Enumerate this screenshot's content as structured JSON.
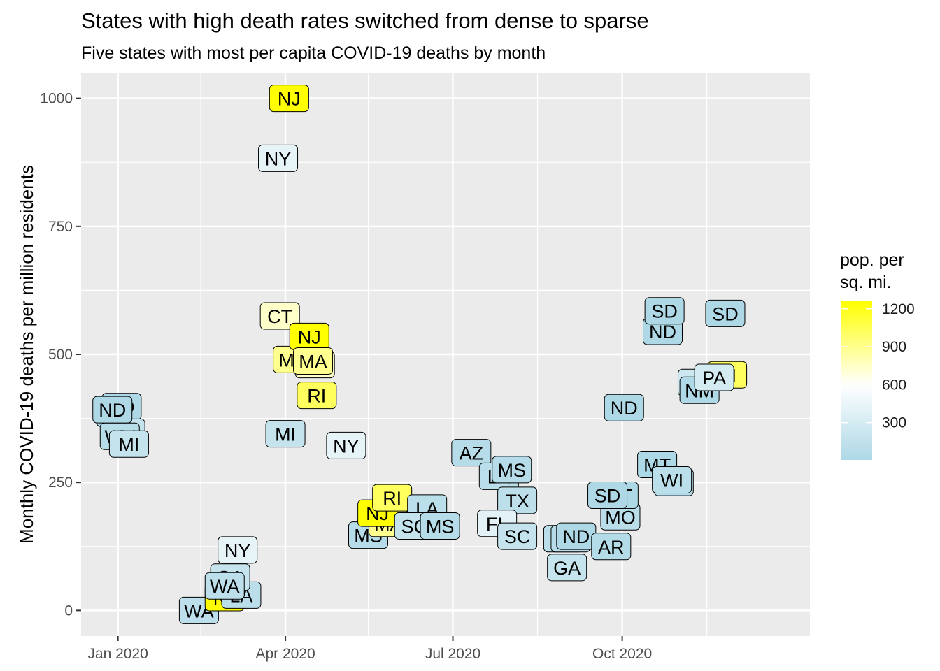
{
  "chart_data": {
    "type": "scatter",
    "title": "States with high death rates switched from dense to sparse",
    "subtitle": "Five states with most per capita COVID-19 deaths by month",
    "xlabel": "",
    "ylabel": "Monthly COVID-19 deaths per million residents",
    "xlim": [
      "2019-12-12",
      "2021-01-11"
    ],
    "ylim": [
      -50,
      1050
    ],
    "x_ticks": [
      "Jan 2020",
      "Apr 2020",
      "Jul 2020",
      "Oct 2020"
    ],
    "x_tick_dates": [
      "2020-01-01",
      "2020-04-01",
      "2020-07-01",
      "2020-10-01"
    ],
    "y_ticks": [
      0,
      250,
      500,
      750,
      1000
    ],
    "grid": true,
    "legend": {
      "title": "pop. per\nsq. mi.",
      "placement": "right",
      "ticks": [
        300,
        600,
        900,
        1200
      ],
      "range": [
        5,
        1265
      ],
      "colors": {
        "low": "#ADD8E6",
        "mid": "#FFFFFF",
        "high": "#FFFF00",
        "midpoint": 600
      }
    },
    "points": [
      {
        "date": "2019-12-31",
        "deaths": 385,
        "state": "ND",
        "density": 11
      },
      {
        "date": "2020-01-03",
        "deaths": 398,
        "state": "SD",
        "density": 12
      },
      {
        "date": "2020-01-05",
        "deaths": 348,
        "state": "MI",
        "density": 178
      },
      {
        "date": "2020-01-02",
        "deaths": 340,
        "state": "WV",
        "density": 75
      },
      {
        "date": "2020-01-07",
        "deaths": 325,
        "state": "MI",
        "density": 178
      },
      {
        "date": "2019-12-29",
        "deaths": 392,
        "state": "ND",
        "density": 11
      },
      {
        "date": "2020-02-14",
        "deaths": 0,
        "state": "WA",
        "density": 115
      },
      {
        "date": "2020-02-28",
        "deaths": 25,
        "state": "NJ",
        "density": 1263
      },
      {
        "date": "2020-03-08",
        "deaths": 30,
        "state": "LA",
        "density": 108
      },
      {
        "date": "2020-03-02",
        "deaths": 65,
        "state": "GA",
        "density": 185
      },
      {
        "date": "2020-02-28",
        "deaths": 48,
        "state": "WA",
        "density": 115
      },
      {
        "date": "2020-03-06",
        "deaths": 118,
        "state": "NY",
        "density": 420
      },
      {
        "date": "2020-03-28",
        "deaths": 883,
        "state": "NY",
        "density": 420
      },
      {
        "date": "2020-04-03",
        "deaths": 1000,
        "state": "NJ",
        "density": 1263
      },
      {
        "date": "2020-03-29",
        "deaths": 575,
        "state": "CT",
        "density": 740
      },
      {
        "date": "2020-04-05",
        "deaths": 490,
        "state": "MA",
        "density": 890
      },
      {
        "date": "2020-04-14",
        "deaths": 535,
        "state": "NJ",
        "density": 1263
      },
      {
        "date": "2020-04-17",
        "deaths": 480,
        "state": "CT",
        "density": 740
      },
      {
        "date": "2020-04-16",
        "deaths": 487,
        "state": "MA",
        "density": 890
      },
      {
        "date": "2020-04-18",
        "deaths": 420,
        "state": "RI",
        "density": 1022
      },
      {
        "date": "2020-04-01",
        "deaths": 345,
        "state": "MI",
        "density": 178
      },
      {
        "date": "2020-05-04",
        "deaths": 322,
        "state": "NY",
        "density": 420
      },
      {
        "date": "2020-05-16",
        "deaths": 147,
        "state": "MS",
        "density": 63
      },
      {
        "date": "2020-05-27",
        "deaths": 170,
        "state": "MA",
        "density": 890
      },
      {
        "date": "2020-05-21",
        "deaths": 190,
        "state": "NJ",
        "density": 1263
      },
      {
        "date": "2020-05-29",
        "deaths": 220,
        "state": "RI",
        "density": 1022
      },
      {
        "date": "2020-06-17",
        "deaths": 200,
        "state": "LA",
        "density": 108
      },
      {
        "date": "2020-06-10",
        "deaths": 165,
        "state": "SC",
        "density": 170
      },
      {
        "date": "2020-06-24",
        "deaths": 165,
        "state": "MS",
        "density": 63
      },
      {
        "date": "2020-07-11",
        "deaths": 308,
        "state": "AZ",
        "density": 64
      },
      {
        "date": "2020-07-26",
        "deaths": 262,
        "state": "LA",
        "density": 108
      },
      {
        "date": "2020-08-02",
        "deaths": 275,
        "state": "MS",
        "density": 63
      },
      {
        "date": "2020-08-05",
        "deaths": 215,
        "state": "TX",
        "density": 112
      },
      {
        "date": "2020-07-25",
        "deaths": 170,
        "state": "FL",
        "density": 400
      },
      {
        "date": "2020-08-05",
        "deaths": 145,
        "state": "SC",
        "density": 170
      },
      {
        "date": "2020-08-30",
        "deaths": 140,
        "state": "LA",
        "density": 108
      },
      {
        "date": "2020-09-03",
        "deaths": 140,
        "state": "MS",
        "density": 63
      },
      {
        "date": "2020-09-01",
        "deaths": 84,
        "state": "GA",
        "density": 185
      },
      {
        "date": "2020-09-06",
        "deaths": 145,
        "state": "ND",
        "density": 11
      },
      {
        "date": "2020-09-25",
        "deaths": 125,
        "state": "AR",
        "density": 58
      },
      {
        "date": "2020-09-30",
        "deaths": 183,
        "state": "MO",
        "density": 89
      },
      {
        "date": "2020-09-29",
        "deaths": 225,
        "state": "MT",
        "density": 8
      },
      {
        "date": "2020-09-23",
        "deaths": 225,
        "state": "SD",
        "density": 12
      },
      {
        "date": "2020-10-02",
        "deaths": 396,
        "state": "ND",
        "density": 11
      },
      {
        "date": "2020-10-23",
        "deaths": 545,
        "state": "ND",
        "density": 11
      },
      {
        "date": "2020-10-24",
        "deaths": 585,
        "state": "SD",
        "density": 12
      },
      {
        "date": "2020-10-20",
        "deaths": 285,
        "state": "MT",
        "density": 8
      },
      {
        "date": "2020-10-29",
        "deaths": 250,
        "state": "IA",
        "density": 57
      },
      {
        "date": "2020-10-28",
        "deaths": 255,
        "state": "WI",
        "density": 108
      },
      {
        "date": "2020-11-11",
        "deaths": 445,
        "state": "IL",
        "density": 231
      },
      {
        "date": "2020-11-12",
        "deaths": 430,
        "state": "NM",
        "density": 17
      },
      {
        "date": "2020-11-27",
        "deaths": 460,
        "state": "RI",
        "density": 1022
      },
      {
        "date": "2020-11-20",
        "deaths": 455,
        "state": "PA",
        "density": 290
      },
      {
        "date": "2020-11-26",
        "deaths": 580,
        "state": "SD",
        "density": 12
      }
    ]
  }
}
